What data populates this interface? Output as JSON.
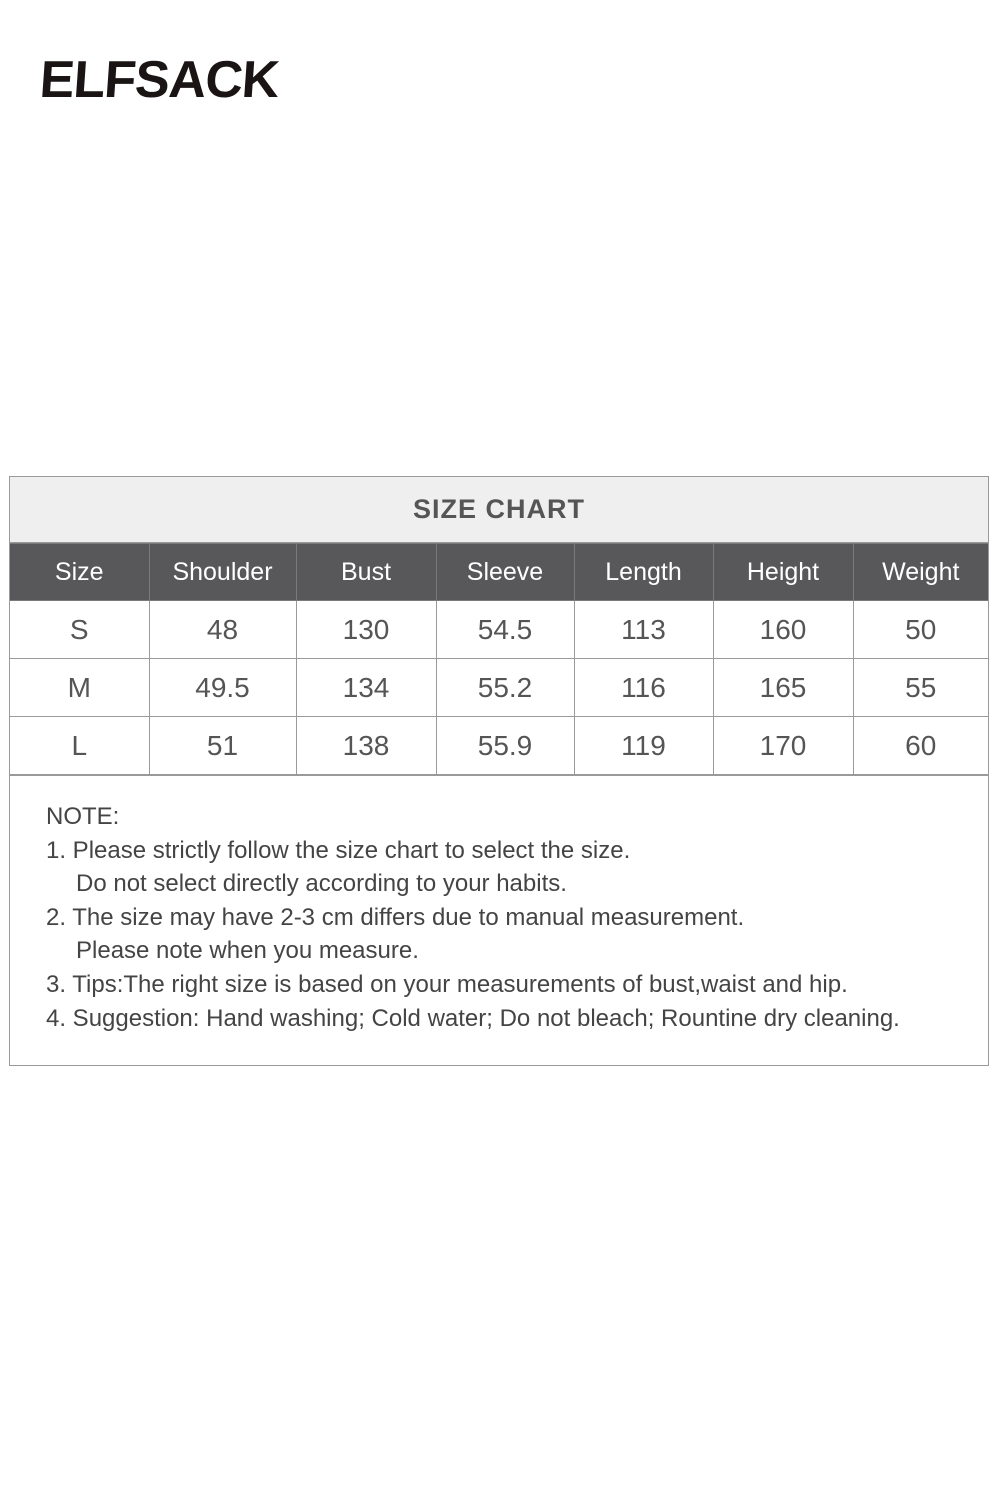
{
  "brand": {
    "logo_text": "ELFSACK"
  },
  "chart": {
    "title": "SIZE CHART",
    "columns": [
      "Size",
      "Shoulder",
      "Bust",
      "Sleeve",
      "Length",
      "Height",
      "Weight"
    ],
    "rows": [
      [
        "S",
        "48",
        "130",
        "54.5",
        "113",
        "160",
        "50"
      ],
      [
        "M",
        "49.5",
        "134",
        "55.2",
        "116",
        "165",
        "55"
      ],
      [
        "L",
        "51",
        "138",
        "55.9",
        "119",
        "170",
        "60"
      ]
    ]
  },
  "notes": {
    "heading": "NOTE:",
    "lines": [
      "1. Please strictly follow the size chart to select the size.",
      "Do not select directly according to your habits.",
      "2. The size may have 2-3 cm differs due to manual measurement.",
      "Please note when you measure.",
      "3. Tips:The right size is based on your measurements of bust,waist and hip.",
      "4. Suggestion: Hand washing; Cold water; Do not bleach; Rountine dry cleaning."
    ]
  },
  "colors": {
    "header_bg": "#58575a",
    "title_bg": "#efefef",
    "text": "#555555"
  }
}
